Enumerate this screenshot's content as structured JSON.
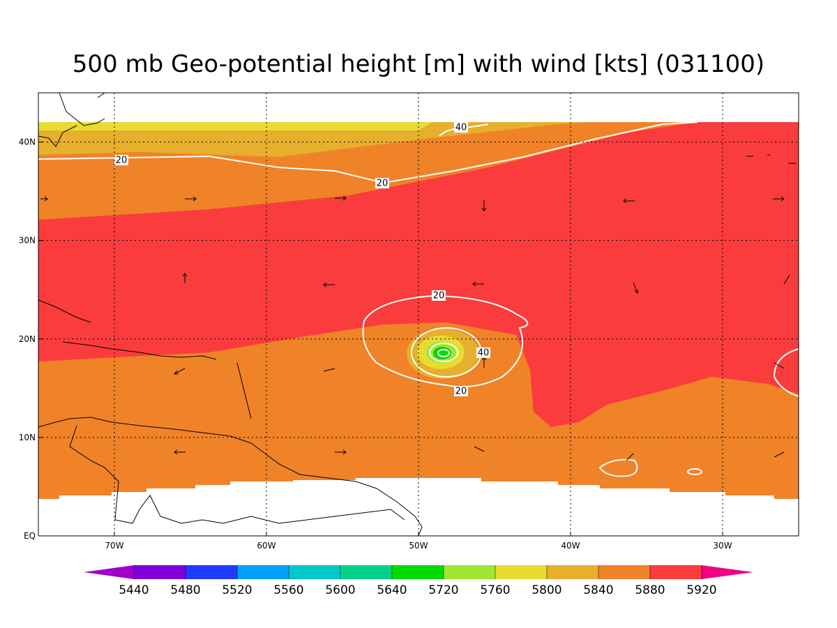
{
  "map": {
    "title": "500 mb Geo-potential height [m] with wind [kts] (031100)",
    "lon_range": [
      -75,
      -25
    ],
    "lat_range": [
      0,
      45
    ],
    "lon_ticks": [
      {
        "value": -70,
        "label": "70W"
      },
      {
        "value": -60,
        "label": "60W"
      },
      {
        "value": -50,
        "label": "50W"
      },
      {
        "value": -40,
        "label": "40W"
      },
      {
        "value": -30,
        "label": "30W"
      }
    ],
    "lat_ticks": [
      {
        "value": 0,
        "label": "EQ"
      },
      {
        "value": 10,
        "label": "10N"
      },
      {
        "value": 20,
        "label": "20N"
      },
      {
        "value": 30,
        "label": "30N"
      },
      {
        "value": 40,
        "label": "40N"
      }
    ],
    "contour_labels": [
      "40",
      "20",
      "20",
      "20",
      "40",
      "20"
    ],
    "colorbar": {
      "levels": [
        5440,
        5480,
        5520,
        5560,
        5600,
        5640,
        5720,
        5760,
        5800,
        5840,
        5880,
        5920
      ],
      "colors": [
        "#a000c8",
        "#8200dc",
        "#1e3cff",
        "#00a0ff",
        "#00c8c8",
        "#00d28c",
        "#00dc00",
        "#a0e632",
        "#e6dc32",
        "#e6af2d",
        "#f08228",
        "#fa3c3c",
        "#f00082"
      ]
    }
  }
}
